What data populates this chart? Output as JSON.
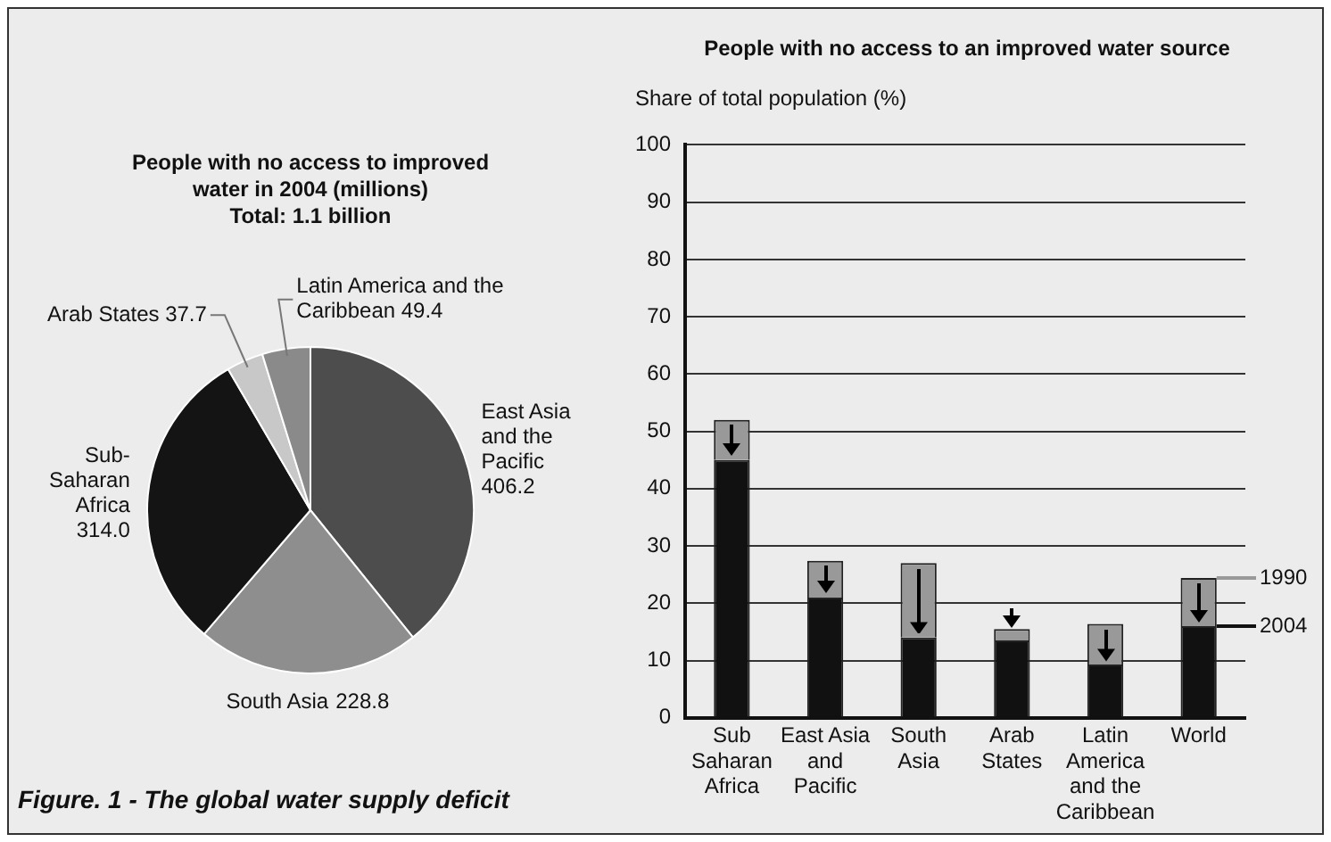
{
  "chart_data": [
    {
      "type": "pie",
      "title": "People with no access to improved water in 2004 (millions)",
      "subtitle": "Total: 1.1 billion",
      "categories": [
        "East Asia and the Pacific",
        "South Asia",
        "Sub-Saharan Africa",
        "Arab States",
        "Latin America and the Caribbean"
      ],
      "values": [
        406.2,
        228.8,
        314.0,
        37.7,
        49.4
      ],
      "colors": [
        "#4d4d4d",
        "#8e8e8e",
        "#141414",
        "#c8c8c8",
        "#8a8a8a"
      ],
      "value_labels": [
        "406.2",
        "228.8",
        "314.0",
        "37.7",
        "49.4"
      ],
      "annotations": [
        "Figure. 1 - The global water supply deficit"
      ]
    },
    {
      "type": "bar",
      "title": "People with no access to an improved water source",
      "ylabel": "Share of total population (%)",
      "categories": [
        "Sub Saharan Africa",
        "East Asia and Pacific",
        "South Asia",
        "Arab States",
        "Latin America and the Caribbean",
        "World"
      ],
      "stacked": true,
      "legend": "right",
      "series": [
        {
          "name": "2004",
          "color": "#111111",
          "values": [
            45,
            21,
            14,
            13.5,
            9.3,
            16
          ]
        },
        {
          "name": "1990",
          "color": "#999999",
          "values": [
            7,
            6.4,
            13,
            2,
            7.1,
            8.4
          ]
        }
      ],
      "ylim": [
        0,
        100
      ],
      "yticks": [
        0,
        10,
        20,
        30,
        40,
        50,
        60,
        70,
        80,
        90,
        100
      ],
      "grid": "y"
    }
  ]
}
